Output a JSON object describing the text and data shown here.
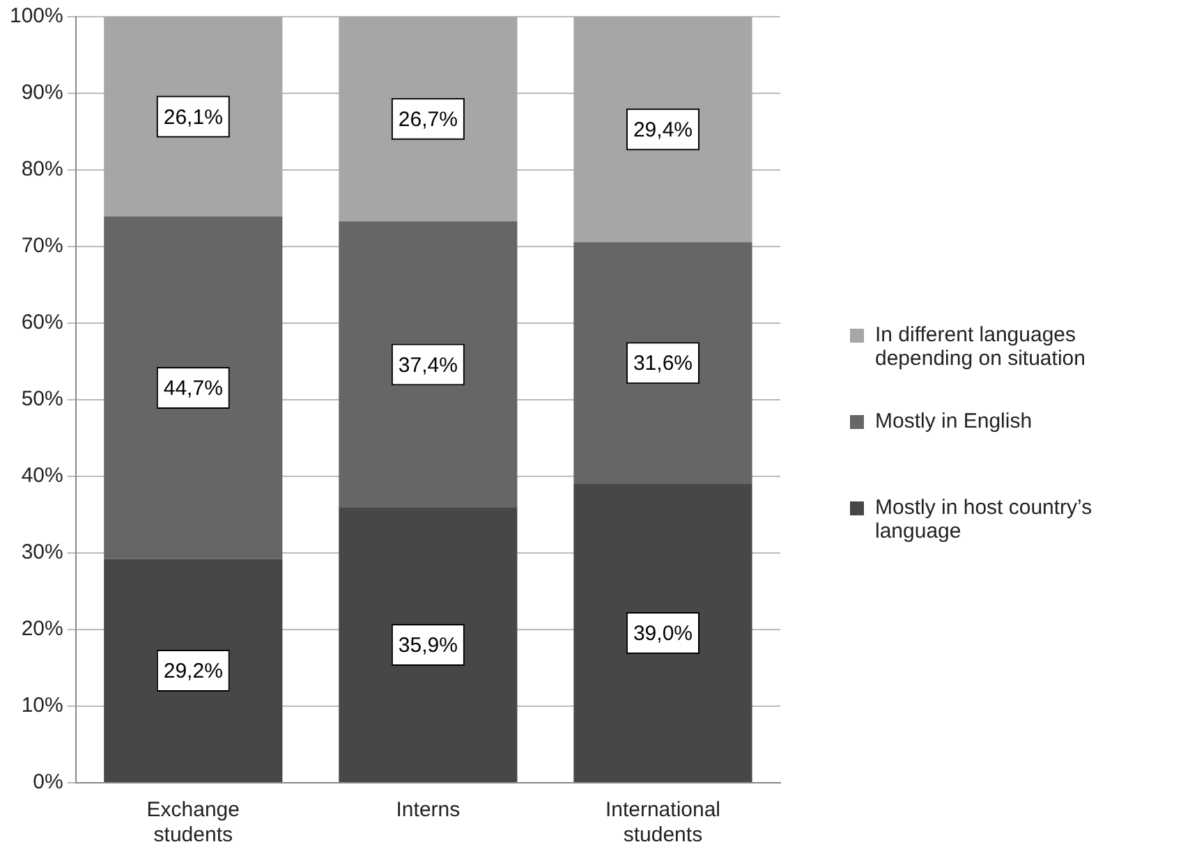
{
  "chart_data": {
    "type": "bar",
    "stacked": true,
    "categories": [
      "Exchange students",
      "Interns",
      "International students"
    ],
    "series": [
      {
        "name": "Mostly in host country’s language",
        "color": "#474747",
        "values": [
          29.2,
          35.9,
          39.0
        ],
        "value_labels": [
          "29,2%",
          "35,9%",
          "39,0%"
        ]
      },
      {
        "name": "Mostly in English",
        "color": "#666666",
        "values": [
          44.7,
          37.4,
          31.6
        ],
        "value_labels": [
          "44,7%",
          "37,4%",
          "31,6%"
        ]
      },
      {
        "name": "In different languages depending on situation",
        "color": "#a6a6a6",
        "values": [
          26.1,
          26.7,
          29.4
        ],
        "value_labels": [
          "26,1%",
          "26,7%",
          "29,4%"
        ]
      }
    ],
    "ylim": [
      0,
      100
    ],
    "yticks": [
      {
        "value": 0,
        "label": "0%"
      },
      {
        "value": 10,
        "label": "10%"
      },
      {
        "value": 20,
        "label": "20%"
      },
      {
        "value": 30,
        "label": "30%"
      },
      {
        "value": 40,
        "label": "40%"
      },
      {
        "value": 50,
        "label": "50%"
      },
      {
        "value": 60,
        "label": "60%"
      },
      {
        "value": 70,
        "label": "70%"
      },
      {
        "value": 80,
        "label": "80%"
      },
      {
        "value": 90,
        "label": "90%"
      },
      {
        "value": 100,
        "label": "100%"
      }
    ],
    "grid": "y",
    "legend": "right"
  }
}
